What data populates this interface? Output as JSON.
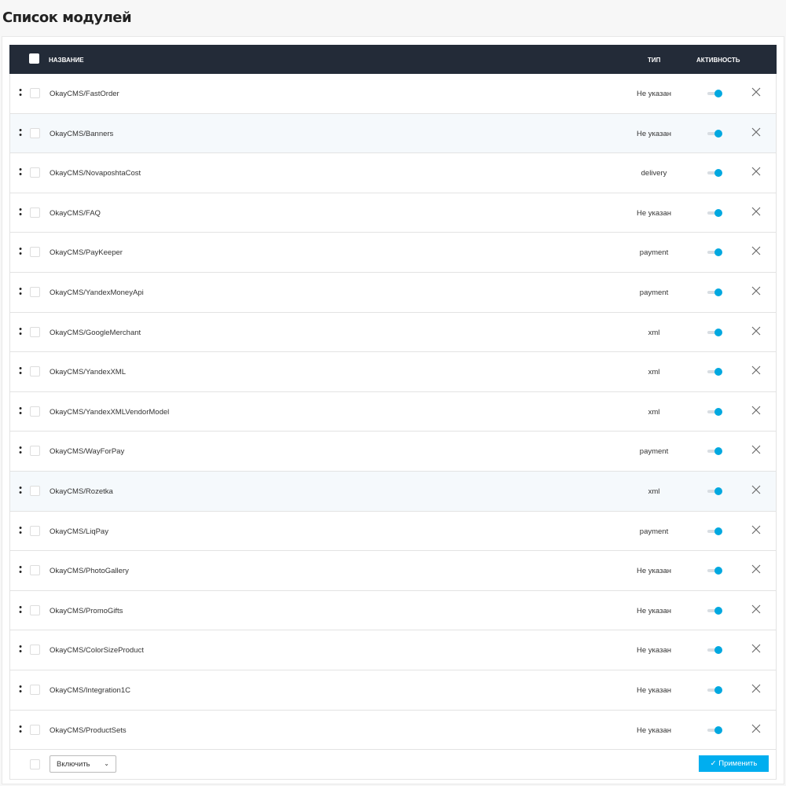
{
  "page": {
    "title": "Список модулей"
  },
  "table": {
    "headers": {
      "name": "НАЗВАНИЕ",
      "type": "ТИП",
      "active": "АКТИВНОСТЬ"
    },
    "rows": [
      {
        "name": "OkayCMS/FastOrder",
        "type": "Не указан",
        "active": true
      },
      {
        "name": "OkayCMS/Banners",
        "type": "Не указан",
        "active": true
      },
      {
        "name": "OkayCMS/NovaposhtaCost",
        "type": "delivery",
        "active": true
      },
      {
        "name": "OkayCMS/FAQ",
        "type": "Не указан",
        "active": true
      },
      {
        "name": "OkayCMS/PayKeeper",
        "type": "payment",
        "active": true
      },
      {
        "name": "OkayCMS/YandexMoneyApi",
        "type": "payment",
        "active": true
      },
      {
        "name": "OkayCMS/GoogleMerchant",
        "type": "xml",
        "active": true
      },
      {
        "name": "OkayCMS/YandexXML",
        "type": "xml",
        "active": true
      },
      {
        "name": "OkayCMS/YandexXMLVendorModel",
        "type": "xml",
        "active": true
      },
      {
        "name": "OkayCMS/WayForPay",
        "type": "payment",
        "active": true
      },
      {
        "name": "OkayCMS/Rozetka",
        "type": "xml",
        "active": true
      },
      {
        "name": "OkayCMS/LiqPay",
        "type": "payment",
        "active": true
      },
      {
        "name": "OkayCMS/PhotoGallery",
        "type": "Не указан",
        "active": true
      },
      {
        "name": "OkayCMS/PromoGifts",
        "type": "Не указан",
        "active": true
      },
      {
        "name": "OkayCMS/ColorSizeProduct",
        "type": "Не указан",
        "active": true
      },
      {
        "name": "OkayCMS/Integration1C",
        "type": "Не указан",
        "active": true
      },
      {
        "name": "OkayCMS/ProductSets",
        "type": "Не указан",
        "active": true
      }
    ]
  },
  "footer": {
    "action_select": "Включить",
    "apply_label": "Применить"
  },
  "colors": {
    "header_bg": "#232b38",
    "accent": "#00aeef",
    "toggle_on": "#00a8e0"
  }
}
